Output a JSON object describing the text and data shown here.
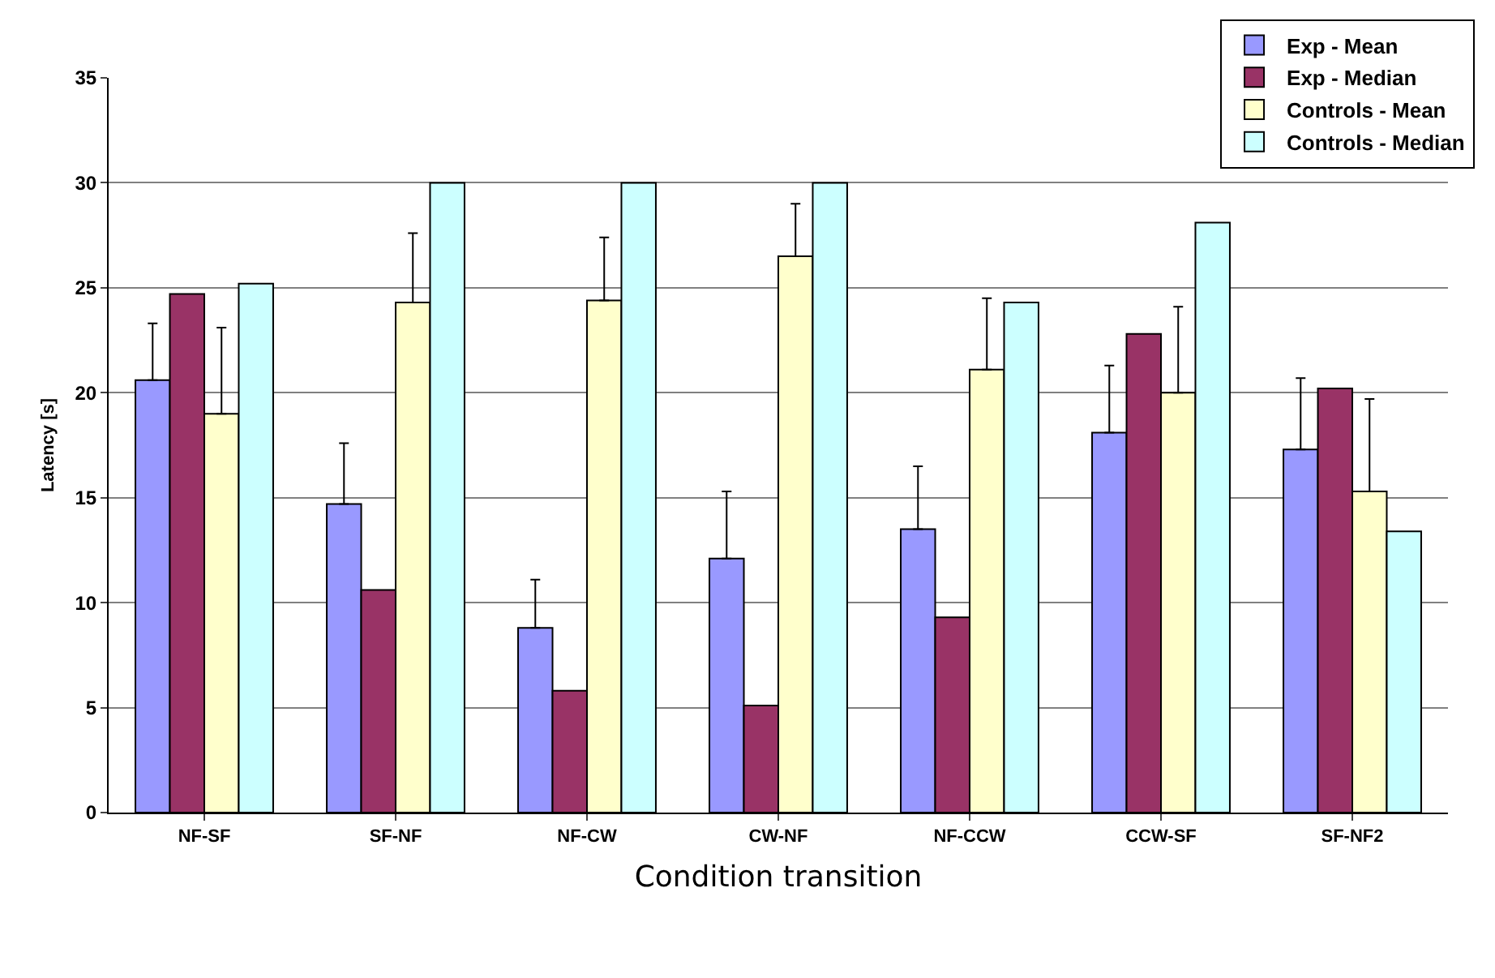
{
  "chart_data": {
    "type": "bar",
    "xlabel": "Condition transition",
    "ylabel": "Latency [s]",
    "categories": [
      "NF-SF",
      "SF-NF",
      "NF-CW",
      "CW-NF",
      "NF-CCW",
      "CCW-SF",
      "SF-NF2"
    ],
    "series": [
      {
        "name": "Exp - Mean",
        "color": "#9999ff",
        "values": [
          20.6,
          14.7,
          8.8,
          12.1,
          13.5,
          18.1,
          17.3
        ],
        "errors": [
          [
            20.6,
            23.3
          ],
          [
            14.7,
            17.6
          ],
          [
            8.8,
            11.1
          ],
          [
            12.1,
            15.3
          ],
          [
            13.5,
            16.5
          ],
          [
            18.1,
            21.3
          ],
          [
            17.3,
            20.7
          ]
        ]
      },
      {
        "name": "Exp - Median",
        "color": "#993366",
        "values": [
          24.7,
          10.6,
          5.8,
          5.1,
          9.3,
          22.8,
          20.2
        ]
      },
      {
        "name": "Controls - Mean",
        "color": "#ffffcc",
        "values": [
          19.0,
          24.3,
          24.4,
          26.5,
          21.1,
          20.0,
          15.3
        ],
        "errors": [
          [
            19.0,
            23.1
          ],
          [
            24.3,
            27.6
          ],
          [
            24.4,
            27.4
          ],
          [
            26.5,
            29.0
          ],
          [
            21.1,
            24.5
          ],
          [
            20.0,
            24.1
          ],
          [
            15.3,
            19.7
          ]
        ]
      },
      {
        "name": "Controls - Median",
        "color": "#ccffff",
        "values": [
          25.2,
          30,
          30,
          30,
          24.3,
          28.1,
          13.4
        ]
      }
    ],
    "ylim": [
      0,
      35
    ],
    "yticks": [
      0,
      5,
      10,
      15,
      20,
      25,
      30,
      35
    ],
    "grid": "y",
    "legend": "top right"
  }
}
